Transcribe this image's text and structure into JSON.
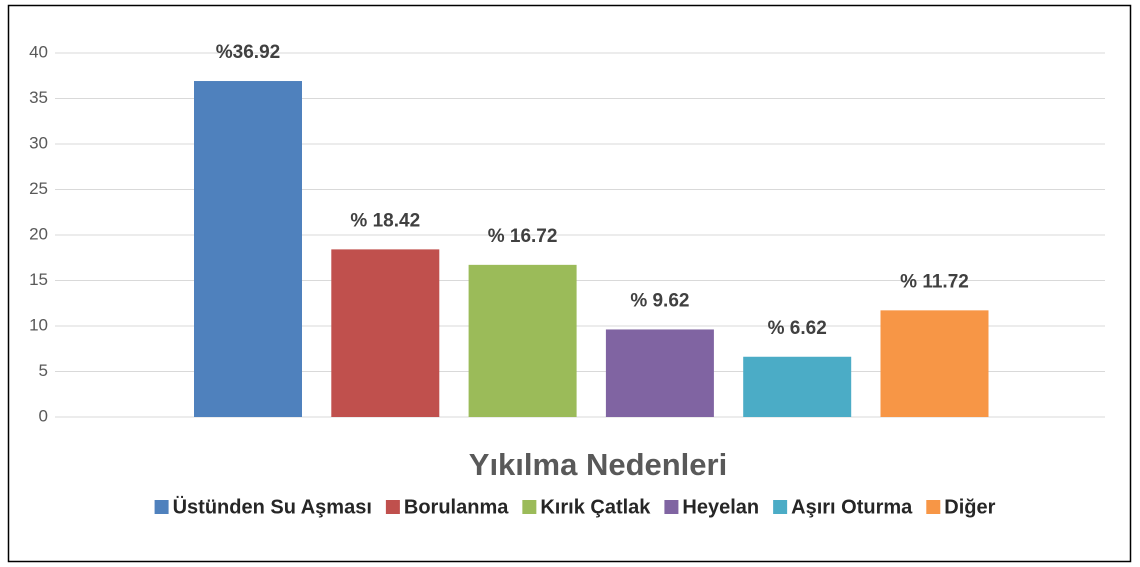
{
  "chart_data": {
    "type": "bar",
    "x_label": "Yıkılma Nedenleri",
    "series": [
      {
        "name": "Üstünden Su Aşması",
        "color": "#4f81bd",
        "values": [
          36.92
        ],
        "value_labels": [
          "%36.92"
        ]
      },
      {
        "name": "Borulanma",
        "color": "#c0504d",
        "values": [
          18.42
        ],
        "value_labels": [
          "% 18.42"
        ]
      },
      {
        "name": "Kırık Çatlak",
        "color": "#9bbb59",
        "values": [
          16.72
        ],
        "value_labels": [
          "% 16.72"
        ]
      },
      {
        "name": "Heyelan",
        "color": "#8064a2",
        "values": [
          9.62
        ],
        "value_labels": [
          "% 9.62"
        ]
      },
      {
        "name": "Aşırı Oturma",
        "color": "#4bacc6",
        "values": [
          6.62
        ],
        "value_labels": [
          "% 6.62"
        ]
      },
      {
        "name": "Diğer",
        "color": "#f79646",
        "values": [
          11.72
        ],
        "value_labels": [
          "% 11.72"
        ]
      }
    ],
    "ylim": [
      0,
      40
    ],
    "yticks": [
      0,
      5,
      10,
      15,
      20,
      25,
      30,
      35,
      40
    ],
    "grid": true,
    "legend": "bottom"
  }
}
